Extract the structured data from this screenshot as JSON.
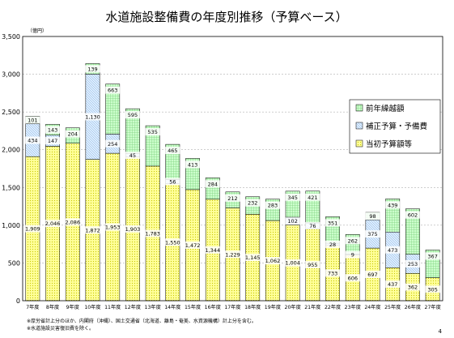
{
  "chart_data": {
    "type": "bar",
    "stacked": true,
    "title": "水道施設整備費の年度別推移（予算ベース）",
    "unit_label": "（億円）",
    "ylim": [
      0,
      3500
    ],
    "yticks": [
      0,
      500,
      1000,
      1500,
      2000,
      2500,
      3000,
      3500
    ],
    "ytick_labels": [
      "0",
      "500",
      "1,000",
      "1,500",
      "2,000",
      "2,500",
      "3,000",
      "3,500"
    ],
    "grid": true,
    "legend_position": "right",
    "categories": [
      "7年度",
      "8年度",
      "9年度",
      "10年度",
      "11年度",
      "12年度",
      "13年度",
      "14年度",
      "15年度",
      "16年度",
      "17年度",
      "18年度",
      "19年度",
      "20年度",
      "21年度",
      "22年度",
      "23年度",
      "24年度",
      "25年度",
      "26年度",
      "27年度"
    ],
    "series": [
      {
        "name": "当初予算額等",
        "color": "#ffff99",
        "values": [
          1909,
          2046,
          2086,
          1872,
          1953,
          1903,
          1783,
          1550,
          1472,
          1344,
          1229,
          1145,
          1062,
          1004,
          955,
          733,
          606,
          697,
          437,
          362,
          305
        ],
        "labels": [
          "1,909",
          "2,046",
          "2,086",
          "1,872",
          "1,953",
          "1,903",
          "1,783",
          "1,550",
          "1,472",
          "1,344",
          "1,229",
          "1,145",
          "1,062",
          "1,004",
          "955",
          "733",
          "606",
          "697",
          "437",
          "362",
          "305"
        ]
      },
      {
        "name": "補正予算・予備費",
        "color": "#ccecff",
        "values": [
          434,
          147,
          0,
          1130,
          254,
          45,
          0,
          56,
          0,
          0,
          0,
          0,
          0,
          102,
          76,
          28,
          9,
          375,
          473,
          253,
          0
        ],
        "labels": [
          "434",
          "147",
          "",
          "1,130",
          "254",
          "45",
          "",
          "56",
          "",
          "",
          "",
          "",
          "",
          "102",
          "76",
          "28",
          "9",
          "375",
          "473",
          "253",
          ""
        ]
      },
      {
        "name": "前年繰越額",
        "color": "#ccffcc",
        "values": [
          101,
          143,
          204,
          139,
          663,
          595,
          535,
          465,
          413,
          284,
          212,
          232,
          283,
          345,
          421,
          351,
          262,
          98,
          439,
          602,
          367
        ],
        "labels": [
          "101",
          "143",
          "204",
          "139",
          "663",
          "595",
          "535",
          "465",
          "413",
          "284",
          "212",
          "232",
          "283",
          "345",
          "421",
          "351",
          "262",
          "98",
          "439",
          "602",
          "367"
        ]
      }
    ]
  },
  "notes": [
    "※厚労省計上分のほか、内閣府（沖縄）、国土交通省（北海道、離島・奄美、水資源機構）計上分を含む。",
    "※水道施設災害復旧費を除く。"
  ],
  "page_number": "4"
}
